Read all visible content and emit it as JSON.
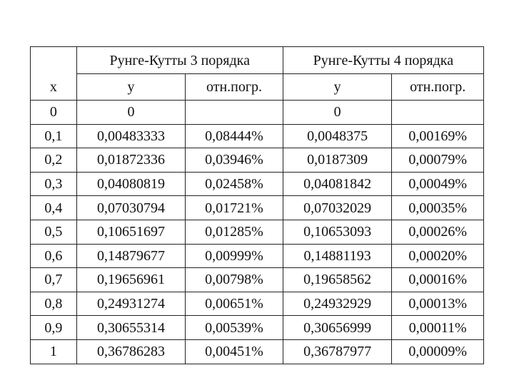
{
  "table": {
    "group_headers": [
      "Рунге-Кутты 3 порядка",
      "Рунге-Кутты 4 порядка"
    ],
    "columns": [
      "x",
      "y",
      "отн.погр.",
      "y",
      "отн.погр."
    ],
    "rows": [
      [
        "0",
        "0",
        "",
        "0",
        ""
      ],
      [
        "0,1",
        "0,00483333",
        "0,08444%",
        "0,0048375",
        "0,00169%"
      ],
      [
        "0,2",
        "0,01872336",
        "0,03946%",
        "0,0187309",
        "0,00079%"
      ],
      [
        "0,3",
        "0,04080819",
        "0,02458%",
        "0,04081842",
        "0,00049%"
      ],
      [
        "0,4",
        "0,07030794",
        "0,01721%",
        "0,07032029",
        "0,00035%"
      ],
      [
        "0,5",
        "0,10651697",
        "0,01285%",
        "0,10653093",
        "0,00026%"
      ],
      [
        "0,6",
        "0,14879677",
        "0,00999%",
        "0,14881193",
        "0,00020%"
      ],
      [
        "0,7",
        "0,19656961",
        "0,00798%",
        "0,19658562",
        "0,00016%"
      ],
      [
        "0,8",
        "0,24931274",
        "0,00651%",
        "0,24932929",
        "0,00013%"
      ],
      [
        "0,9",
        "0,30655314",
        "0,00539%",
        "0,30656999",
        "0,00011%"
      ],
      [
        "1",
        "0,36786283",
        "0,00451%",
        "0,36787977",
        "0,00009%"
      ]
    ]
  }
}
